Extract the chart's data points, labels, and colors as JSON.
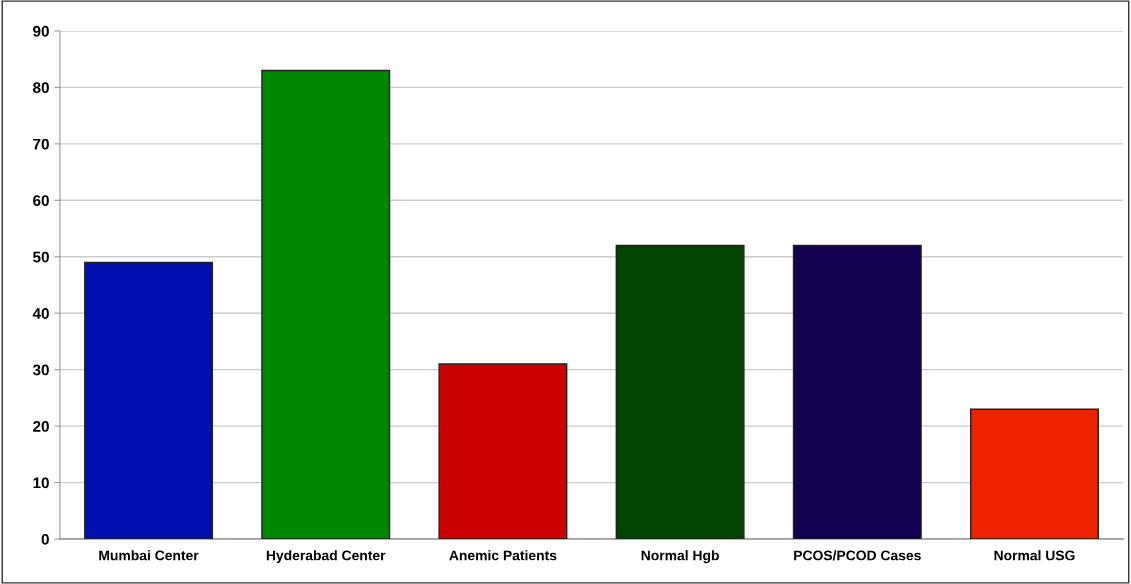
{
  "chart_data": {
    "type": "bar",
    "categories": [
      "Mumbai Center",
      "Hyderabad Center",
      "Anemic Patients",
      "Normal Hgb",
      "PCOS/PCOD Cases",
      "Normal USG"
    ],
    "values": [
      49,
      83,
      31,
      52,
      52,
      23
    ],
    "colors": [
      "#0010b0",
      "#008800",
      "#cc0000",
      "#004400",
      "#140050",
      "#ee2200"
    ],
    "ylim": [
      0,
      90
    ],
    "yticks": [
      0,
      10,
      20,
      30,
      40,
      50,
      60,
      70,
      80,
      90
    ],
    "grid": "y"
  }
}
